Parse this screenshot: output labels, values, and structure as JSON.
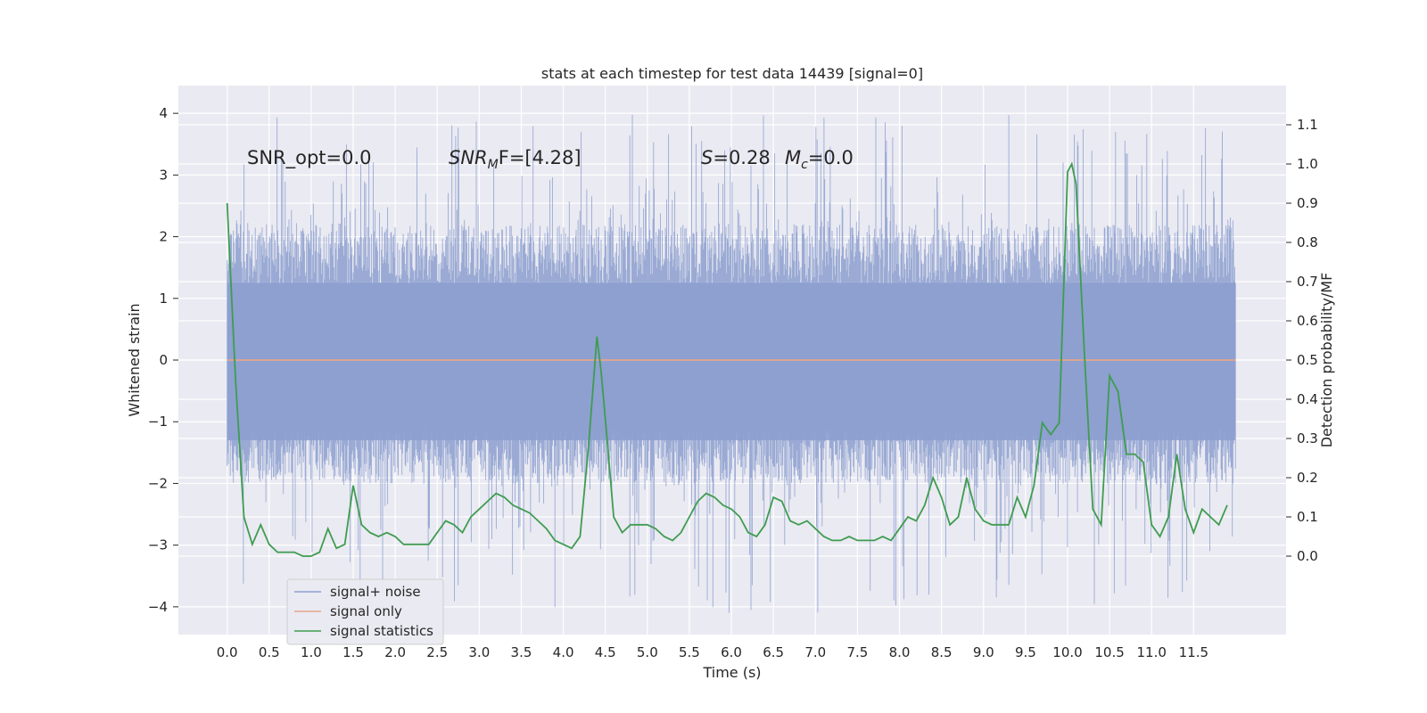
{
  "chart_data": {
    "type": "line",
    "title": "stats at each timestep for test data 14439 [signal=0]",
    "xlabel": "Time (s)",
    "ylabel_left": "Whitened strain",
    "ylabel_right": "Detection probability/MF",
    "xlim": [
      -0.58,
      12.6
    ],
    "ylim_left": [
      -4.45,
      4.45
    ],
    "ylim_right": [
      -0.2,
      1.2
    ],
    "x_ticks": [
      "0.0",
      "0.5",
      "1.0",
      "1.5",
      "2.0",
      "2.5",
      "3.0",
      "3.5",
      "4.0",
      "4.5",
      "5.0",
      "5.5",
      "6.0",
      "6.5",
      "7.0",
      "7.5",
      "8.0",
      "8.5",
      "9.0",
      "9.5",
      "10.0",
      "10.5",
      "11.0",
      "11.5"
    ],
    "y_ticks_left": [
      "4",
      "3",
      "2",
      "1",
      "0",
      "−1",
      "−2",
      "−3",
      "−4"
    ],
    "y_ticks_right": [
      "1.1",
      "1.0",
      "0.9",
      "0.8",
      "0.7",
      "0.6",
      "0.5",
      "0.4",
      "0.3",
      "0.2",
      "0.1",
      "0.0"
    ],
    "annotations": {
      "snr_opt": "SNR_opt=0.0",
      "snr_mf_main": "SNR",
      "snr_mf_sub": "M",
      "snr_mf_rest": "F=[4.28]",
      "s_label": "S",
      "s_value": "=0.28",
      "mc_main": "M",
      "mc_sub": "c",
      "mc_value": "=0.0"
    },
    "legend": {
      "placement": "lower-left",
      "entries": [
        "signal+ noise",
        "signal only",
        "signal statistics"
      ]
    },
    "series": [
      {
        "name": "signal+ noise",
        "color": "#8c9fcf",
        "axis": "left",
        "kind": "noise",
        "x_range": [
          0.0,
          12.0
        ],
        "typical_range": [
          -2.0,
          2.2
        ],
        "extreme_range": [
          -4.1,
          4.05
        ]
      },
      {
        "name": "signal only",
        "color": "#e8a48a",
        "axis": "left",
        "kind": "flat",
        "x": [
          0.0,
          12.0
        ],
        "y": [
          0.0,
          0.0
        ]
      },
      {
        "name": "signal statistics",
        "color": "#3f9c50",
        "axis": "right",
        "x": [
          0.0,
          0.1,
          0.2,
          0.3,
          0.4,
          0.5,
          0.6,
          0.7,
          0.8,
          0.9,
          1.0,
          1.1,
          1.2,
          1.3,
          1.4,
          1.5,
          1.6,
          1.7,
          1.8,
          1.9,
          2.0,
          2.1,
          2.2,
          2.3,
          2.4,
          2.5,
          2.6,
          2.7,
          2.8,
          2.9,
          3.0,
          3.1,
          3.2,
          3.3,
          3.4,
          3.5,
          3.6,
          3.7,
          3.8,
          3.9,
          4.0,
          4.1,
          4.2,
          4.3,
          4.4,
          4.45,
          4.5,
          4.6,
          4.7,
          4.8,
          4.9,
          5.0,
          5.1,
          5.2,
          5.3,
          5.4,
          5.5,
          5.6,
          5.7,
          5.8,
          5.9,
          6.0,
          6.1,
          6.2,
          6.3,
          6.4,
          6.5,
          6.6,
          6.7,
          6.8,
          6.9,
          7.0,
          7.1,
          7.2,
          7.3,
          7.4,
          7.5,
          7.6,
          7.7,
          7.8,
          7.9,
          8.0,
          8.1,
          8.2,
          8.3,
          8.4,
          8.5,
          8.6,
          8.7,
          8.8,
          8.9,
          9.0,
          9.1,
          9.2,
          9.3,
          9.4,
          9.5,
          9.6,
          9.7,
          9.8,
          9.9,
          10.0,
          10.05,
          10.1,
          10.2,
          10.3,
          10.4,
          10.5,
          10.6,
          10.7,
          10.8,
          10.9,
          11.0,
          11.1,
          11.2,
          11.3,
          11.4,
          11.5,
          11.6,
          11.7,
          11.8,
          11.9
        ],
        "y": [
          0.9,
          0.45,
          0.1,
          0.03,
          0.08,
          0.03,
          0.01,
          0.01,
          0.01,
          0.0,
          0.0,
          0.01,
          0.07,
          0.02,
          0.03,
          0.18,
          0.08,
          0.06,
          0.05,
          0.06,
          0.05,
          0.03,
          0.03,
          0.03,
          0.03,
          0.06,
          0.09,
          0.08,
          0.06,
          0.1,
          0.12,
          0.14,
          0.16,
          0.15,
          0.13,
          0.12,
          0.11,
          0.09,
          0.07,
          0.04,
          0.03,
          0.02,
          0.05,
          0.28,
          0.56,
          0.47,
          0.35,
          0.1,
          0.06,
          0.08,
          0.08,
          0.08,
          0.07,
          0.05,
          0.04,
          0.06,
          0.1,
          0.14,
          0.16,
          0.15,
          0.13,
          0.12,
          0.1,
          0.06,
          0.05,
          0.08,
          0.15,
          0.14,
          0.09,
          0.08,
          0.09,
          0.07,
          0.05,
          0.04,
          0.04,
          0.05,
          0.04,
          0.04,
          0.04,
          0.05,
          0.04,
          0.07,
          0.1,
          0.09,
          0.13,
          0.2,
          0.15,
          0.08,
          0.1,
          0.2,
          0.12,
          0.09,
          0.08,
          0.08,
          0.08,
          0.15,
          0.1,
          0.18,
          0.34,
          0.31,
          0.34,
          0.98,
          1.0,
          0.95,
          0.52,
          0.12,
          0.08,
          0.46,
          0.42,
          0.26,
          0.26,
          0.24,
          0.08,
          0.05,
          0.1,
          0.26,
          0.12,
          0.06,
          0.12,
          0.1,
          0.08,
          0.13
        ]
      }
    ]
  }
}
